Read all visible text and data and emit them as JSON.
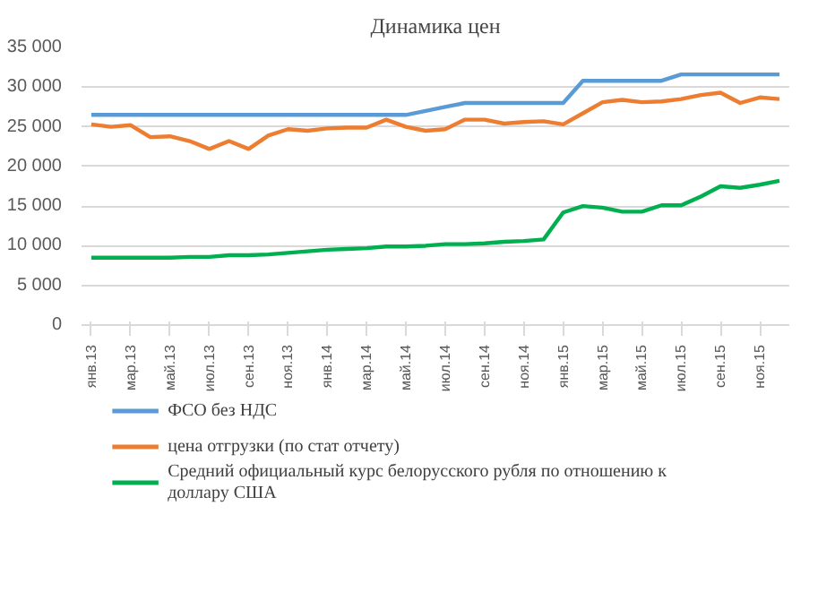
{
  "chart_data": {
    "type": "line",
    "title": "Динамика цен",
    "categories": [
      "янв.13",
      null,
      "мар.13",
      null,
      "май.13",
      null,
      "июл.13",
      null,
      "сен.13",
      null,
      "ноя.13",
      null,
      "янв.14",
      null,
      "мар.14",
      null,
      "май.14",
      null,
      "июл.14",
      null,
      "сен.14",
      null,
      "ноя.14",
      null,
      "янв.15",
      null,
      "мар.15",
      null,
      "май.15",
      null,
      "июл.15",
      null,
      "сен.15",
      null,
      "ноя.15",
      null
    ],
    "series": [
      {
        "name": "ФСО без НДС",
        "color": "#5b9bd5",
        "values": [
          26500,
          26500,
          26500,
          26500,
          26500,
          26500,
          26500,
          26500,
          26500,
          26500,
          26500,
          26500,
          26500,
          26500,
          26500,
          26500,
          26500,
          27000,
          27500,
          28000,
          28000,
          28000,
          28000,
          28000,
          28000,
          30800,
          30800,
          30800,
          30800,
          30800,
          31600,
          31600,
          31600,
          31600,
          31600,
          31600
        ]
      },
      {
        "name": "цена отгрузки (по стат отчету)",
        "color": "#ed7d31",
        "values": [
          25300,
          25000,
          25200,
          23700,
          23800,
          23200,
          22200,
          23200,
          22200,
          23900,
          24700,
          24500,
          24800,
          24900,
          24900,
          25900,
          25000,
          24500,
          24700,
          25900,
          25900,
          25400,
          25600,
          25700,
          25300,
          26700,
          28100,
          28400,
          28100,
          28200,
          28500,
          29000,
          29300,
          28000,
          28700,
          28500
        ]
      },
      {
        "name": "Средний официальный курс белорусского рубля по отношению к доллару США",
        "color": "#00b050",
        "values": [
          8500,
          8500,
          8500,
          8500,
          8500,
          8600,
          8600,
          8800,
          8800,
          8900,
          9100,
          9300,
          9500,
          9600,
          9700,
          9900,
          9900,
          10000,
          10200,
          10200,
          10300,
          10500,
          10600,
          10800,
          14200,
          15000,
          14800,
          14300,
          14300,
          15100,
          15100,
          16200,
          17500,
          17300,
          17700,
          18200
        ]
      }
    ],
    "ylim": [
      0,
      35000
    ],
    "yticks": [
      {
        "value": 0,
        "label": "0"
      },
      {
        "value": 5000,
        "label": "5 000"
      },
      {
        "value": 10000,
        "label": "10 000"
      },
      {
        "value": 15000,
        "label": "15 000"
      },
      {
        "value": 20000,
        "label": "20 000"
      },
      {
        "value": 25000,
        "label": "25 000"
      },
      {
        "value": 30000,
        "label": "30 000"
      },
      {
        "value": 35000,
        "label": "35 000"
      }
    ],
    "grid": "y",
    "legend": "bottom",
    "line_style": "solid",
    "marker": "none"
  }
}
